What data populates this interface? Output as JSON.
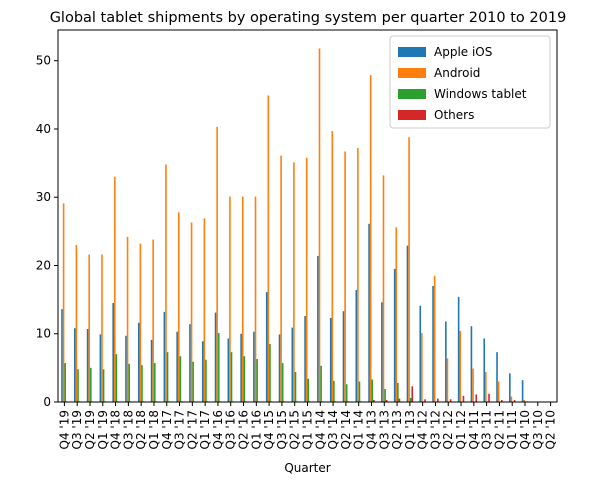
{
  "chart_data": {
    "type": "bar",
    "title": "Global tablet shipments by operating system per quarter 2010 to 2019",
    "xlabel": "Quarter",
    "ylabel": "",
    "ylim": [
      0,
      54.5
    ],
    "yticks": [
      0,
      10,
      20,
      30,
      40,
      50
    ],
    "grid": false,
    "legend_position": "top-right",
    "categories": [
      "Q4 '19",
      "Q3 '19",
      "Q2 '19",
      "Q1 '19",
      "Q4 '18",
      "Q3 '18",
      "Q2 '18",
      "Q1 '18",
      "Q4 '17",
      "Q3 '17",
      "Q2 '17",
      "Q1 '17",
      "Q4 '16",
      "Q3 '16",
      "Q2 '16",
      "Q1 '16",
      "Q4 '15",
      "Q3 '15",
      "Q2 '15",
      "Q1 '15",
      "Q4 '14",
      "Q3 '14",
      "Q2 '14",
      "Q1 '14",
      "Q4 '13",
      "Q3 '13",
      "Q2 '13",
      "Q1 '13",
      "Q4 '12",
      "Q3 '12",
      "Q2 '12",
      "Q1 '12",
      "Q4 '11",
      "Q3 '11",
      "Q2 '11",
      "Q1 '11",
      "Q4 '10",
      "Q3 '10",
      "Q2 '10"
    ],
    "series": [
      {
        "name": "Apple iOS",
        "color": "#1f77b4",
        "values": [
          13.6,
          10.8,
          10.7,
          9.9,
          14.5,
          9.7,
          11.6,
          9.1,
          13.2,
          10.3,
          11.4,
          8.9,
          13.1,
          9.3,
          10.0,
          10.3,
          16.1,
          9.9,
          10.9,
          12.6,
          21.4,
          12.3,
          13.3,
          16.4,
          26.1,
          14.6,
          19.5,
          22.9,
          14.1,
          17.0,
          11.8,
          15.4,
          11.1,
          9.3,
          7.3,
          4.2,
          3.2,
          0,
          0
        ]
      },
      {
        "name": "Android",
        "color": "#ff7f0e",
        "values": [
          29.1,
          23.0,
          21.6,
          21.6,
          33.0,
          24.2,
          23.2,
          23.8,
          34.8,
          27.8,
          26.3,
          26.9,
          40.3,
          30.1,
          30.1,
          30.1,
          44.9,
          36.1,
          35.1,
          35.8,
          51.8,
          39.7,
          36.7,
          37.2,
          47.9,
          33.2,
          25.6,
          38.8,
          10.1,
          18.5,
          6.4,
          10.4,
          4.9,
          4.4,
          3.0,
          0.8,
          0.3,
          0,
          0
        ]
      },
      {
        "name": "Windows tablet",
        "color": "#2ca02c",
        "values": [
          5.7,
          4.8,
          5.0,
          4.8,
          7.0,
          5.6,
          5.4,
          5.7,
          7.3,
          6.7,
          5.9,
          6.2,
          10.1,
          7.3,
          6.7,
          6.3,
          8.5,
          5.7,
          4.4,
          3.4,
          5.3,
          3.1,
          2.6,
          3.0,
          3.3,
          1.9,
          2.8,
          0.6,
          0,
          0,
          0,
          0,
          0,
          0,
          0,
          0,
          0,
          0,
          0
        ]
      },
      {
        "name": "Others",
        "color": "#d62728",
        "values": [
          0.1,
          0.1,
          0.1,
          0.1,
          0.1,
          0.1,
          0.1,
          0.1,
          0.1,
          0.1,
          0.1,
          0.1,
          0.1,
          0.1,
          0.1,
          0.1,
          0.1,
          0.1,
          0.1,
          0.1,
          0.1,
          0.1,
          0.1,
          0.1,
          0.3,
          0.3,
          0.5,
          2.3,
          0.4,
          0.5,
          0.4,
          0.9,
          1.1,
          1.2,
          0.3,
          0.3,
          0.1,
          0,
          0
        ]
      }
    ]
  }
}
